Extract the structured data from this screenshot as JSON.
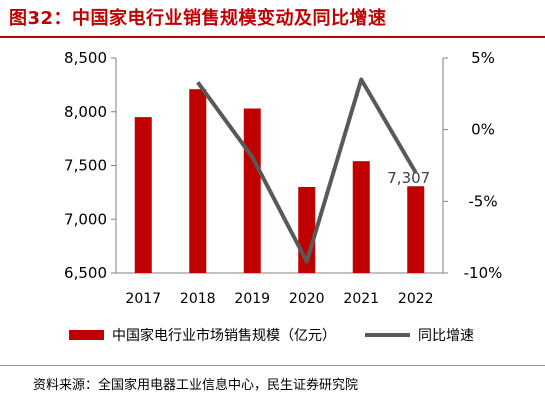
{
  "title": "图32：中国家电行业销售规模变动及同比增速",
  "source": "资料来源：全国家用电器工业信息中心，民生证券研究院",
  "colors": {
    "bar": "#c00000",
    "line": "#595959",
    "title": "#c00000"
  },
  "chart_data": {
    "type": "bar+line",
    "categories": [
      "2017",
      "2018",
      "2019",
      "2020",
      "2021",
      "2022"
    ],
    "series": [
      {
        "name": "中国家电行业市场销售规模（亿元）",
        "type": "bar",
        "axis": "left",
        "values": [
          7950,
          8210,
          8030,
          7300,
          7540,
          7307
        ]
      },
      {
        "name": "同比增速",
        "type": "line",
        "axis": "right",
        "values": [
          null,
          3.3,
          -1.9,
          -9.2,
          3.5,
          -3.0
        ]
      }
    ],
    "y_left": {
      "ticks": [
        "6,500",
        "7,000",
        "7,500",
        "8,000",
        "8,500"
      ],
      "min": 6500,
      "max": 8500
    },
    "y_right": {
      "ticks": [
        "5%",
        "0%",
        "-5%",
        "-10%"
      ],
      "min": -10,
      "max": 5
    },
    "data_labels": [
      {
        "category": "2022",
        "text": "7,307"
      }
    ],
    "legend_position": "bottom",
    "grid": false
  }
}
